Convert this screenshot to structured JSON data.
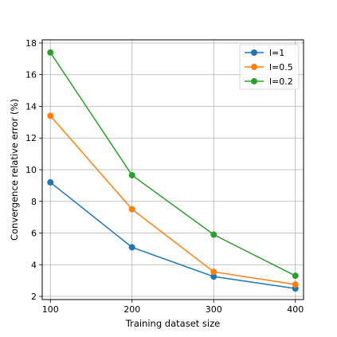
{
  "chart_data": {
    "type": "line",
    "title": "",
    "xlabel": "Training dataset size",
    "ylabel": "Convergence relative error (%)",
    "x": [
      100,
      200,
      300,
      400
    ],
    "xticks": [
      100,
      200,
      300,
      400
    ],
    "yticks": [
      2,
      4,
      6,
      8,
      10,
      12,
      14,
      16,
      18
    ],
    "xlim": [
      90,
      410
    ],
    "ylim": [
      1.8,
      18.2
    ],
    "grid": true,
    "legend_position": "top-right",
    "series": [
      {
        "name": "l=1",
        "color": "#1f77b4",
        "values": [
          9.2,
          5.1,
          3.25,
          2.5
        ]
      },
      {
        "name": "l=0.5",
        "color": "#ff7f0e",
        "values": [
          13.4,
          7.5,
          3.55,
          2.75
        ]
      },
      {
        "name": "l=0.2",
        "color": "#2ca02c",
        "values": [
          17.4,
          9.65,
          5.9,
          3.3
        ]
      }
    ]
  }
}
